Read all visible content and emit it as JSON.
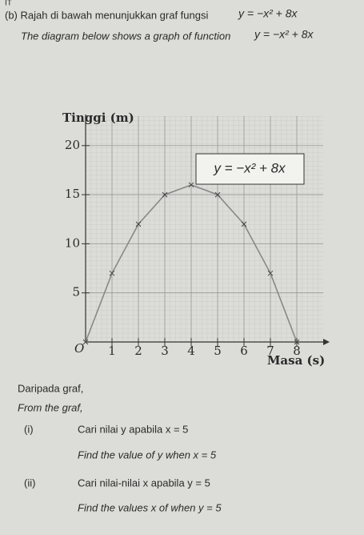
{
  "header": {
    "corner": "IT",
    "question_ms": "(b) Rajah di bawah menunjukkan graf fungsi",
    "question_en": "The diagram below shows a graph of function",
    "equation": "y = −x² + 8x"
  },
  "graph": {
    "type": "line",
    "y_label": "Tinggi (m)",
    "x_label": "Masa (s)",
    "origin_label": "O",
    "annotation": "y = −x² + 8x",
    "x": [
      0,
      1,
      2,
      3,
      4,
      5,
      6,
      7,
      8
    ],
    "values": [
      0,
      7,
      12,
      15,
      16,
      15,
      12,
      7,
      0
    ],
    "color": "#888888",
    "xlim": [
      0,
      9
    ],
    "ylim": [
      0,
      23
    ],
    "xticks": [
      1,
      2,
      3,
      4,
      5,
      6,
      7,
      8
    ],
    "yticks": [
      5,
      10,
      15,
      20
    ],
    "grid": true
  },
  "questions": {
    "intro_ms": "Daripada graf,",
    "intro_en": "From the graf,",
    "items": [
      {
        "number": "(i)",
        "ms": "Cari nilai y apabila x = 5",
        "en": "Find the value of y when x = 5"
      },
      {
        "number": "(ii)",
        "ms": "Cari nilai-nilai x apabila y = 5",
        "en": "Find the values x of when y = 5"
      }
    ]
  }
}
